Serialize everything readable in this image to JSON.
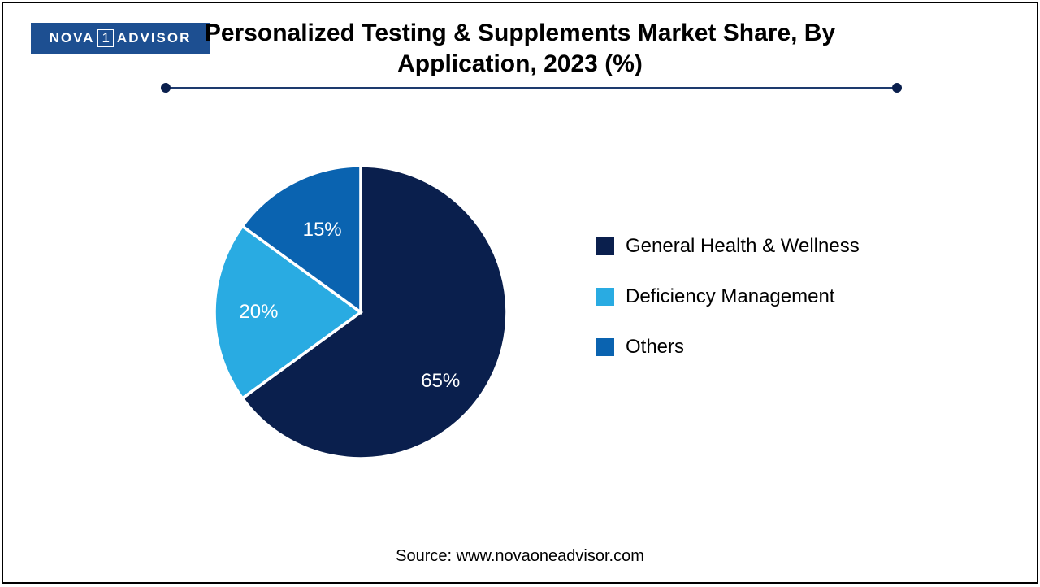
{
  "logo": {
    "text_left": "NOVA",
    "text_box": "1",
    "text_right": "ADVISOR",
    "bg_color": "#1d4f91",
    "text_color": "#ffffff"
  },
  "title": {
    "line1": "Personalized Testing & Supplements Market Share, By",
    "line2": "Application, 2023 (%)",
    "fontsize_pt": 22,
    "color": "#000000"
  },
  "divider": {
    "line_color": "#1d3a6e",
    "dot_color": "#0a1f4d"
  },
  "chart": {
    "type": "pie",
    "background_color": "#ffffff",
    "stroke_color": "#ffffff",
    "stroke_width": 2,
    "label_fontsize_pt": 18,
    "label_color": "#ffffff",
    "slices": [
      {
        "label": "General Health & Wellness",
        "value": 65,
        "display": "65%",
        "color": "#0a1f4d"
      },
      {
        "label": "Deficiency Management",
        "value": 20,
        "display": "20%",
        "color": "#29abe2"
      },
      {
        "label": "Others",
        "value": 15,
        "display": "15%",
        "color": "#0a63b0"
      }
    ]
  },
  "legend": {
    "fontsize_pt": 18,
    "text_color": "#000000"
  },
  "source": {
    "text": "Source: www.novaoneadvisor.com",
    "fontsize_pt": 15,
    "color": "#000000"
  }
}
